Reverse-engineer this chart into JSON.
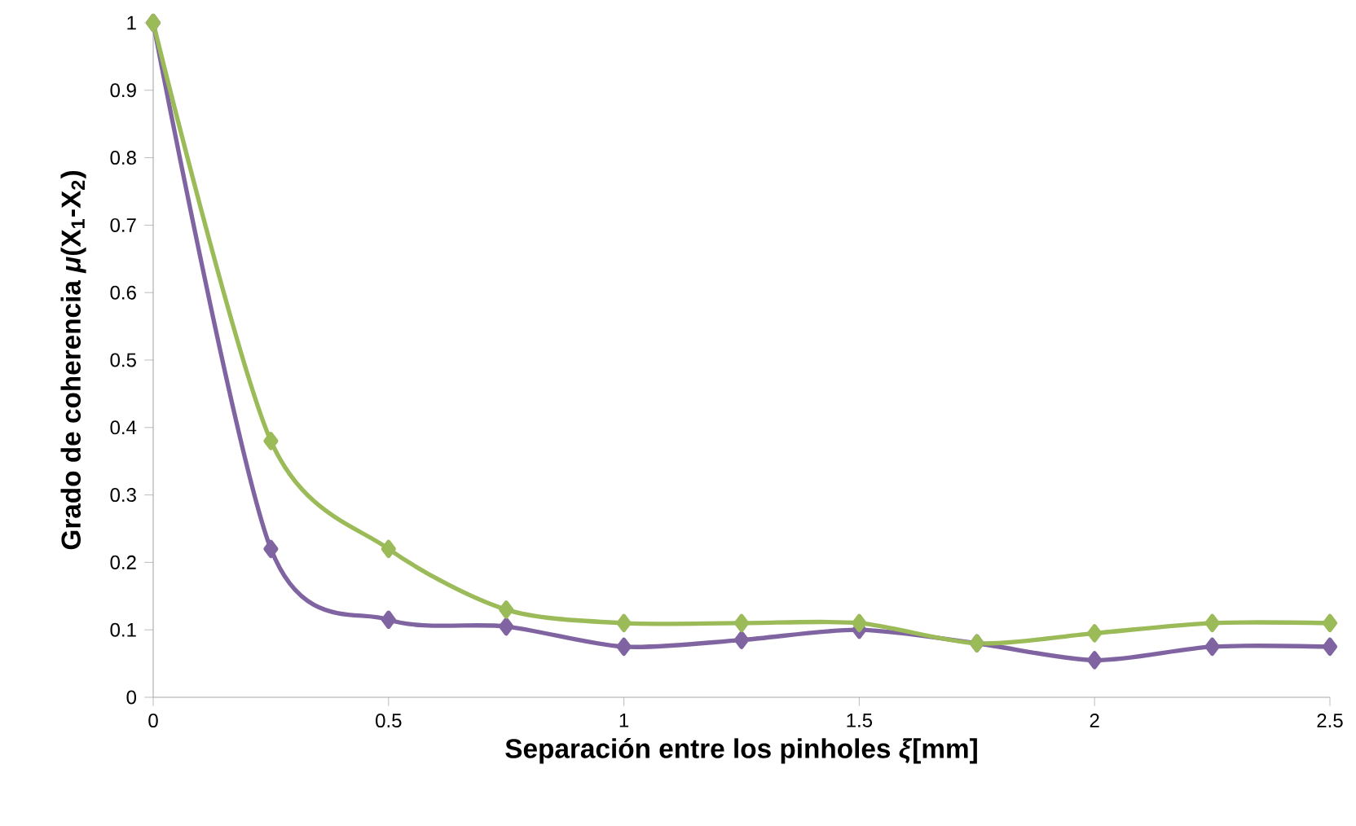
{
  "chart_data": {
    "type": "line",
    "xlabel": "Separación entre los pinholes *ξ*[mm]",
    "ylabel": "Grado de coherencia *μ*(X$_{1}$-X$_{2}$)",
    "x": [
      0,
      0.25,
      0.5,
      0.75,
      1,
      1.25,
      1.5,
      1.75,
      2,
      2.25,
      2.5
    ],
    "series": [
      {
        "color": "#8064a2",
        "values": [
          1,
          0.22,
          0.115,
          0.105,
          0.075,
          0.085,
          0.1,
          0.08,
          0.055,
          0.075,
          0.075
        ]
      },
      {
        "color": "#9bbb59",
        "values": [
          1,
          0.38,
          0.22,
          0.13,
          0.11,
          0.11,
          0.11,
          0.08,
          0.095,
          0.11,
          0.11
        ]
      }
    ],
    "xlim": [
      0,
      2.5
    ],
    "ylim": [
      0,
      1
    ],
    "xticks": [
      0,
      0.5,
      1,
      1.5,
      2,
      2.5
    ],
    "yticks": [
      0,
      0.1,
      0.2,
      0.3,
      0.4,
      0.5,
      0.6,
      0.7,
      0.8,
      0.9,
      1
    ],
    "marker": "diamond",
    "line_style": "solid"
  }
}
